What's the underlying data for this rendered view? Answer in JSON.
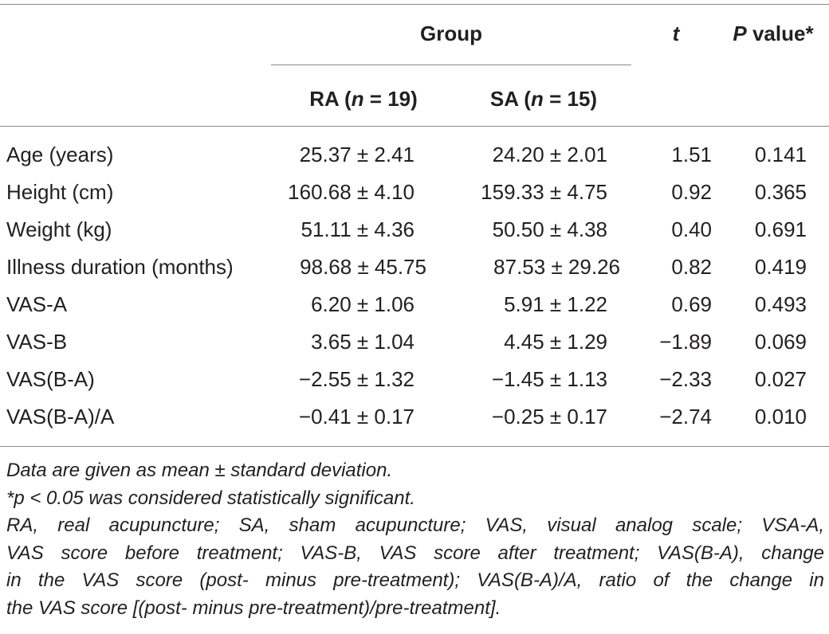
{
  "table": {
    "header": {
      "group": "Group",
      "t": "t",
      "p_value": "P",
      "p_value_suffix": " value*",
      "ra_prefix": "RA (",
      "ra_n": "n",
      "ra_suffix": " = 19)",
      "sa_prefix": "SA (",
      "sa_n": "n",
      "sa_suffix": " = 15)"
    },
    "rows": [
      {
        "label": "Age (years)",
        "ra": "25.37 ± 2.41",
        "sa": "24.20 ± 2.01",
        "t": "1.51",
        "p": "0.141"
      },
      {
        "label": "Height (cm)",
        "ra": "160.68 ± 4.10",
        "sa": "159.33 ± 4.75",
        "t": "0.92",
        "p": "0.365"
      },
      {
        "label": "Weight (kg)",
        "ra": "51.11 ± 4.36",
        "sa": "50.50 ± 4.38",
        "t": "0.40",
        "p": "0.691"
      },
      {
        "label": "Illness duration (months)",
        "ra": "98.68 ± 45.75",
        "sa": "87.53 ± 29.26",
        "t": "0.82",
        "p": "0.419"
      },
      {
        "label": "VAS-A",
        "ra": "6.20 ± 1.06",
        "sa": "5.91 ± 1.22",
        "t": "0.69",
        "p": "0.493"
      },
      {
        "label": "VAS-B",
        "ra": "3.65 ± 1.04",
        "sa": "4.45 ± 1.29",
        "t": "−1.89",
        "p": "0.069"
      },
      {
        "label": "VAS(B-A)",
        "ra": "−2.55 ± 1.32",
        "sa": "−1.45 ± 1.13",
        "t": "−2.33",
        "p": "0.027"
      },
      {
        "label": "VAS(B-A)/A",
        "ra": "−0.41 ± 0.17",
        "sa": "−0.25 ± 0.17",
        "t": "−2.74",
        "p": "0.010"
      }
    ]
  },
  "notes": {
    "line1": "Data are given as mean ± standard deviation.",
    "line2": "*p < 0.05 was considered statistically significant.",
    "line3": "RA, real acupuncture; SA, sham acupuncture; VAS, visual analog scale; VSA-A,",
    "line4": "VAS score before treatment; VAS-B, VAS score after treatment; VAS(B-A), change",
    "line5": "in the VAS score (post- minus pre-treatment); VAS(B-A)/A, ratio of the change in",
    "line6": "the VAS score [(post- minus pre-treatment)/pre-treatment]."
  }
}
